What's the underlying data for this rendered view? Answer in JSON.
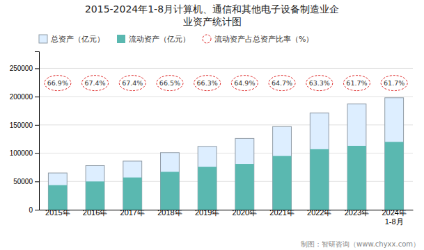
{
  "chart_data": {
    "type": "bar",
    "title": "2015-2024年1-8月计算机、通信和其他电子设备制造业企\n业资产统计图",
    "categories": [
      "2015年",
      "2016年",
      "2017年",
      "2018年",
      "2019年",
      "2020年",
      "2021年",
      "2022年",
      "2023年",
      "2024年\n1-8月"
    ],
    "series": [
      {
        "name": "总资产（亿元）",
        "type": "bar",
        "color": "#ddeeff",
        "values": [
          65000,
          78000,
          86000,
          101000,
          112000,
          126000,
          147000,
          171000,
          187000,
          198000
        ]
      },
      {
        "name": "流动资产（亿元）",
        "type": "bar",
        "color": "#5ab8b0",
        "values": [
          43500,
          50000,
          57000,
          67000,
          76000,
          81000,
          95000,
          107000,
          113000,
          120000
        ]
      },
      {
        "name": "流动资产占总资产比率（%）",
        "type": "annotation",
        "color": "#dd2222",
        "marker": "circle",
        "line_style": "dashed",
        "data_labels": true,
        "values": [
          66.9,
          67.4,
          67.4,
          66.5,
          66.3,
          64.9,
          64.7,
          63.3,
          61.7,
          61.7
        ],
        "value_labels": [
          "66.9%",
          "67.4%",
          "67.4%",
          "66.5%",
          "66.3%",
          "64.9%",
          "64.7%",
          "63.3%",
          "61.7%",
          "61.7%"
        ]
      }
    ],
    "stacked": false,
    "ylim": [
      0,
      280000
    ],
    "yticks": [
      0,
      50000,
      100000,
      150000,
      200000,
      250000
    ],
    "grid": true,
    "legend": "top",
    "annotations": [
      "制图：智研咨询（www.chyxx.com）"
    ]
  }
}
